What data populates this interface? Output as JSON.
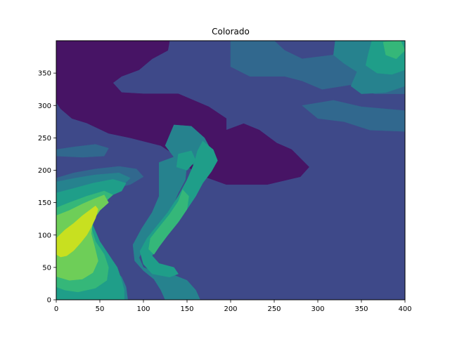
{
  "chart_data": {
    "type": "heatmap",
    "subtype": "filled-contour",
    "title": "Colorado",
    "xlabel": "",
    "ylabel": "",
    "xlim": [
      0,
      400
    ],
    "ylim": [
      0,
      400
    ],
    "xticks": [
      0,
      50,
      100,
      150,
      200,
      250,
      300,
      350,
      400
    ],
    "yticks": [
      0,
      50,
      100,
      150,
      200,
      250,
      300,
      350
    ],
    "grid": false,
    "colormap": "viridis",
    "levels": [
      {
        "level": 0,
        "color": "#471465"
      },
      {
        "level": 1,
        "color": "#3e4989"
      },
      {
        "level": 2,
        "color": "#31688e"
      },
      {
        "level": 3,
        "color": "#26828e"
      },
      {
        "level": 4,
        "color": "#1f9e89"
      },
      {
        "level": 5,
        "color": "#35b779"
      },
      {
        "level": 6,
        "color": "#6ece58"
      },
      {
        "level": 7,
        "color": "#c8e020"
      }
    ],
    "regions": [
      {
        "level": 0,
        "points": [
          [
            0,
            400
          ],
          [
            130,
            400
          ],
          [
            128,
            385
          ],
          [
            110,
            372
          ],
          [
            95,
            355
          ],
          [
            75,
            345
          ],
          [
            65,
            335
          ],
          [
            75,
            320
          ],
          [
            100,
            318
          ],
          [
            140,
            318
          ],
          [
            175,
            298
          ],
          [
            195,
            280
          ],
          [
            195,
            262
          ],
          [
            215,
            272
          ],
          [
            233,
            262
          ],
          [
            253,
            242
          ],
          [
            270,
            232
          ],
          [
            290,
            205
          ],
          [
            280,
            190
          ],
          [
            242,
            178
          ],
          [
            195,
            178
          ],
          [
            160,
            195
          ],
          [
            140,
            220
          ],
          [
            120,
            238
          ],
          [
            85,
            250
          ],
          [
            60,
            257
          ],
          [
            35,
            273
          ],
          [
            18,
            280
          ],
          [
            5,
            295
          ],
          [
            0,
            305
          ]
        ]
      },
      {
        "level": 2,
        "points": [
          [
            200,
            400
          ],
          [
            250,
            400
          ],
          [
            262,
            385
          ],
          [
            282,
            372
          ],
          [
            330,
            380
          ],
          [
            400,
            380
          ],
          [
            400,
            318
          ],
          [
            365,
            318
          ],
          [
            338,
            332
          ],
          [
            305,
            325
          ],
          [
            282,
            338
          ],
          [
            262,
            345
          ],
          [
            222,
            345
          ],
          [
            200,
            360
          ]
        ]
      },
      {
        "level": 2,
        "points": [
          [
            282,
            300
          ],
          [
            318,
            308
          ],
          [
            350,
            298
          ],
          [
            400,
            292
          ],
          [
            400,
            260
          ],
          [
            360,
            262
          ],
          [
            330,
            275
          ],
          [
            300,
            280
          ]
        ]
      },
      {
        "level": 2,
        "points": [
          [
            0,
            188
          ],
          [
            20,
            196
          ],
          [
            45,
            202
          ],
          [
            72,
            206
          ],
          [
            92,
            202
          ],
          [
            100,
            190
          ],
          [
            85,
            178
          ],
          [
            60,
            170
          ],
          [
            30,
            168
          ],
          [
            0,
            172
          ]
        ]
      },
      {
        "level": 2,
        "points": [
          [
            0,
            232
          ],
          [
            20,
            236
          ],
          [
            45,
            240
          ],
          [
            60,
            234
          ],
          [
            55,
            222
          ],
          [
            30,
            220
          ],
          [
            0,
            222
          ]
        ]
      },
      {
        "level": 3,
        "points": [
          [
            0,
            182
          ],
          [
            22,
            188
          ],
          [
            45,
            193
          ],
          [
            72,
            196
          ],
          [
            85,
            188
          ],
          [
            75,
            175
          ],
          [
            55,
            165
          ],
          [
            40,
            145
          ],
          [
            35,
            118
          ],
          [
            40,
            95
          ],
          [
            52,
            68
          ],
          [
            65,
            50
          ],
          [
            75,
            35
          ],
          [
            80,
            20
          ],
          [
            82,
            0
          ],
          [
            0,
            0
          ]
        ]
      },
      {
        "level": 3,
        "points": [
          [
            118,
            212
          ],
          [
            138,
            222
          ],
          [
            150,
            210
          ],
          [
            148,
            185
          ],
          [
            140,
            165
          ],
          [
            132,
            140
          ],
          [
            122,
            120
          ],
          [
            110,
            100
          ],
          [
            100,
            80
          ],
          [
            95,
            65
          ],
          [
            100,
            50
          ],
          [
            115,
            42
          ],
          [
            135,
            38
          ],
          [
            150,
            30
          ],
          [
            160,
            15
          ],
          [
            165,
            0
          ],
          [
            125,
            0
          ],
          [
            120,
            15
          ],
          [
            112,
            32
          ],
          [
            100,
            45
          ],
          [
            90,
            60
          ],
          [
            88,
            85
          ],
          [
            98,
            110
          ],
          [
            110,
            135
          ],
          [
            118,
            160
          ],
          [
            118,
            190
          ]
        ]
      },
      {
        "level": 3,
        "points": [
          [
            320,
            400
          ],
          [
            380,
            400
          ],
          [
            400,
            395
          ],
          [
            400,
            330
          ],
          [
            378,
            320
          ],
          [
            350,
            318
          ],
          [
            338,
            330
          ],
          [
            345,
            352
          ],
          [
            330,
            365
          ],
          [
            318,
            378
          ]
        ]
      },
      {
        "level": 3,
        "points": [
          [
            135,
            270
          ],
          [
            155,
            268
          ],
          [
            170,
            250
          ],
          [
            180,
            225
          ],
          [
            160,
            208
          ],
          [
            138,
            215
          ],
          [
            125,
            238
          ]
        ]
      },
      {
        "level": 4,
        "points": [
          [
            0,
            165
          ],
          [
            20,
            172
          ],
          [
            42,
            180
          ],
          [
            65,
            186
          ],
          [
            80,
            180
          ],
          [
            75,
            168
          ],
          [
            58,
            158
          ],
          [
            45,
            140
          ],
          [
            42,
            115
          ],
          [
            50,
            90
          ],
          [
            60,
            70
          ],
          [
            70,
            50
          ],
          [
            75,
            30
          ],
          [
            78,
            15
          ],
          [
            78,
            0
          ],
          [
            0,
            0
          ]
        ]
      },
      {
        "level": 4,
        "points": [
          [
            168,
            245
          ],
          [
            180,
            232
          ],
          [
            185,
            215
          ],
          [
            178,
            198
          ],
          [
            168,
            180
          ],
          [
            160,
            160
          ],
          [
            150,
            140
          ],
          [
            140,
            120
          ],
          [
            128,
            100
          ],
          [
            116,
            82
          ],
          [
            110,
            68
          ],
          [
            118,
            56
          ],
          [
            135,
            50
          ],
          [
            140,
            40
          ],
          [
            130,
            35
          ],
          [
            110,
            40
          ],
          [
            100,
            55
          ],
          [
            96,
            75
          ],
          [
            104,
            95
          ],
          [
            116,
            115
          ],
          [
            128,
            135
          ],
          [
            140,
            160
          ],
          [
            150,
            185
          ],
          [
            158,
            210
          ],
          [
            162,
            230
          ]
        ]
      },
      {
        "level": 4,
        "points": [
          [
            362,
            400
          ],
          [
            400,
            400
          ],
          [
            400,
            355
          ],
          [
            385,
            348
          ],
          [
            368,
            350
          ],
          [
            355,
            362
          ],
          [
            358,
            380
          ]
        ]
      },
      {
        "level": 4,
        "points": [
          [
            140,
            225
          ],
          [
            155,
            230
          ],
          [
            160,
            215
          ],
          [
            150,
            200
          ],
          [
            138,
            205
          ]
        ]
      },
      {
        "level": 5,
        "points": [
          [
            0,
            142
          ],
          [
            15,
            150
          ],
          [
            35,
            160
          ],
          [
            55,
            168
          ],
          [
            65,
            162
          ],
          [
            55,
            150
          ],
          [
            45,
            132
          ],
          [
            40,
            112
          ],
          [
            45,
            90
          ],
          [
            55,
            70
          ],
          [
            60,
            50
          ],
          [
            58,
            30
          ],
          [
            45,
            18
          ],
          [
            25,
            12
          ],
          [
            10,
            15
          ],
          [
            0,
            20
          ]
        ]
      },
      {
        "level": 5,
        "points": [
          [
            145,
            170
          ],
          [
            152,
            160
          ],
          [
            150,
            140
          ],
          [
            140,
            120
          ],
          [
            128,
            100
          ],
          [
            118,
            82
          ],
          [
            112,
            70
          ],
          [
            106,
            78
          ],
          [
            108,
            95
          ],
          [
            118,
            112
          ],
          [
            130,
            132
          ],
          [
            140,
            152
          ]
        ]
      },
      {
        "level": 5,
        "points": [
          [
            375,
            398
          ],
          [
            395,
            400
          ],
          [
            400,
            385
          ],
          [
            390,
            372
          ],
          [
            378,
            378
          ]
        ]
      },
      {
        "level": 6,
        "points": [
          [
            0,
            130
          ],
          [
            15,
            138
          ],
          [
            30,
            148
          ],
          [
            42,
            155
          ],
          [
            55,
            162
          ],
          [
            60,
            150
          ],
          [
            50,
            138
          ],
          [
            42,
            122
          ],
          [
            40,
            102
          ],
          [
            44,
            82
          ],
          [
            48,
            60
          ],
          [
            42,
            42
          ],
          [
            30,
            32
          ],
          [
            15,
            30
          ],
          [
            0,
            36
          ]
        ]
      },
      {
        "level": 7,
        "points": [
          [
            0,
            95
          ],
          [
            10,
            108
          ],
          [
            20,
            118
          ],
          [
            30,
            130
          ],
          [
            40,
            140
          ],
          [
            45,
            145
          ],
          [
            48,
            140
          ],
          [
            45,
            126
          ],
          [
            40,
            112
          ],
          [
            35,
            100
          ],
          [
            28,
            88
          ],
          [
            20,
            76
          ],
          [
            12,
            68
          ],
          [
            5,
            66
          ],
          [
            0,
            70
          ]
        ]
      }
    ]
  }
}
